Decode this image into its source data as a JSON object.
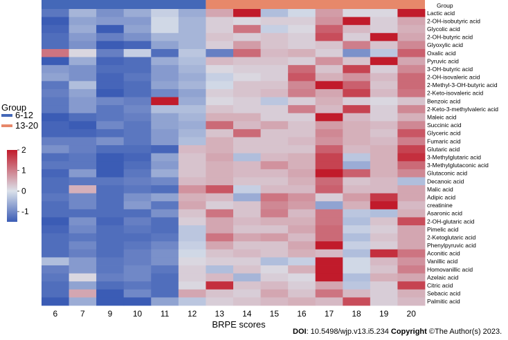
{
  "chart_data": {
    "type": "heatmap",
    "title": "",
    "xlabel": "BRPE scores",
    "ylabel": "",
    "x_categories": [
      "6",
      "7",
      "9",
      "10",
      "11",
      "12",
      "13",
      "14",
      "15",
      "16",
      "17",
      "18",
      "19",
      "20"
    ],
    "group_label": "Group",
    "groups": [
      {
        "name": "6-12",
        "color": "#4468b8",
        "columns": [
          "6",
          "7",
          "9",
          "10",
          "11",
          "12"
        ]
      },
      {
        "name": "13-20",
        "color": "#e7886a",
        "columns": [
          "13",
          "14",
          "15",
          "16",
          "17",
          "18",
          "19",
          "20"
        ]
      }
    ],
    "colorbar": {
      "min": -1.5,
      "max": 2,
      "ticks": [
        2,
        1,
        0,
        -1
      ],
      "tick_labels": [
        "2",
        "1",
        "0",
        "-1"
      ],
      "colors": [
        "#3b5cb5",
        "#dbe1ea",
        "#c11b2b"
      ]
    },
    "row_labels": [
      "Lactic acid",
      "2-OH-isobutyric acid",
      "Glycolic acid",
      "2-OH-butyric acid",
      "Glyoxylic acid",
      "Oxalic acid",
      "Pyruvic acid",
      "3-OH-butyric acid",
      "2-OH-isovaleric acid",
      "2-Methyl-3-OH-butyric acid",
      "2-Keto-isovaleric acid",
      "Benzoic acid",
      "2-Keto-3-methylvaleric acid",
      "Maleic acid",
      "Succinic acid",
      "Glyceric acid",
      "Fumaric acid",
      "Glutaric acid",
      "3-Methylglutaric acid",
      "3-Methylglutaconic acid",
      "Glutaconic acid",
      "Decanoic acid",
      "Malic acid",
      "Adipic acid",
      "creatinine",
      "Asaronic acid",
      "2-OH-glutaric acid",
      "Pimelic acid",
      "2-Ketoglutaric acid",
      "Phenylpyruvic acid",
      "Aconitic acid",
      "Vanillic acid",
      "Homovanillic acid",
      "Azelaic acid",
      "Citric acid",
      "Sebacic acid",
      "Palmitic acid"
    ],
    "values": [
      [
        -1.2,
        -0.5,
        -0.9,
        -0.6,
        -0.2,
        -0.6,
        0.6,
        2,
        -0.4,
        -0.1,
        0.7,
        0.1,
        0.1,
        2
      ],
      [
        -1.6,
        -0.7,
        -0.8,
        -0.8,
        -0.1,
        -0.5,
        0.2,
        0.1,
        0.2,
        0.2,
        0.8,
        2,
        0.2,
        0.6
      ],
      [
        -1.4,
        -0.6,
        -1.5,
        -0.7,
        -0.1,
        -0.5,
        0.2,
        1.1,
        -0.2,
        0.1,
        1.3,
        0.4,
        0.2,
        0.5
      ],
      [
        -1.3,
        -0.8,
        -1.1,
        -0.9,
        -0.5,
        -0.5,
        0.3,
        0.2,
        0.3,
        0.2,
        1.5,
        0.2,
        2,
        0.6
      ],
      [
        -1.3,
        -0.9,
        -1.5,
        -1.4,
        -0.7,
        -0.5,
        0.2,
        0.7,
        0.3,
        0.2,
        0.3,
        1,
        0.3,
        0.9
      ],
      [
        1.1,
        0.1,
        -1.1,
        -0.2,
        -1.3,
        -0.3,
        -1.1,
        1.2,
        0.4,
        0.5,
        0.2,
        -0.9,
        -0.3,
        1.3
      ],
      [
        -1.6,
        -0.6,
        -1.4,
        -1.3,
        -0.6,
        -0.4,
        0.4,
        0.3,
        0.3,
        0.2,
        0.8,
        0.3,
        2,
        0.6
      ],
      [
        -0.8,
        -0.9,
        -1.3,
        -1.3,
        -0.8,
        -0.5,
        0.1,
        0.2,
        0.2,
        1.2,
        0.3,
        1.6,
        0.2,
        0.9
      ],
      [
        -0.7,
        -0.9,
        -1.4,
        -1.2,
        -0.8,
        -0.6,
        -0.2,
        0.1,
        0.2,
        1.4,
        0.5,
        0.8,
        0.4,
        1.2
      ],
      [
        -1.2,
        -0.4,
        -1.4,
        -1.3,
        -0.7,
        -0.5,
        -0.1,
        0.3,
        0.3,
        0.9,
        2,
        1.3,
        0.3,
        1.2
      ],
      [
        -1.1,
        -0.7,
        -1.5,
        -1.3,
        -1,
        -0.7,
        0.2,
        0.3,
        0.4,
        1,
        0.6,
        1.6,
        0.4,
        1.1
      ],
      [
        -1.2,
        -0.8,
        -1,
        -1.1,
        2,
        -0.6,
        0.1,
        0.2,
        -0.3,
        0.2,
        0.5,
        0.2,
        0.1,
        0.3
      ],
      [
        -1.2,
        -0.8,
        -1.2,
        -1,
        -0.4,
        -0.4,
        0.3,
        0.2,
        0.2,
        1,
        0.4,
        1.6,
        0.2,
        0.9
      ],
      [
        -1.5,
        -1.3,
        -1.2,
        -1.1,
        -0.7,
        -0.5,
        0.5,
        0.5,
        0.2,
        0.2,
        2,
        0.4,
        0.2,
        0.5
      ],
      [
        -1.4,
        -1.5,
        -1,
        -1.2,
        -0.7,
        -0.6,
        1.2,
        0.4,
        0.6,
        0.3,
        0.7,
        0.5,
        0.4,
        0.9
      ],
      [
        -1.4,
        -1.4,
        -1.3,
        -1.2,
        -0.8,
        -0.5,
        0.3,
        1.2,
        0.3,
        0.3,
        0.9,
        0.5,
        0.3,
        1.4
      ],
      [
        -1.1,
        -1.1,
        -0.9,
        -1.2,
        -0.8,
        -0.4,
        0.5,
        0.3,
        0.3,
        0.4,
        0.8,
        0.5,
        0.4,
        1
      ],
      [
        -0.9,
        -1.1,
        -1.3,
        -1.3,
        -1.4,
        0.4,
        0.5,
        0.3,
        0.3,
        0.3,
        1.3,
        0.4,
        0.5,
        1.6
      ],
      [
        -1.3,
        -1.2,
        -1.5,
        -1.4,
        -0.7,
        0.3,
        0.6,
        -0.4,
        0.4,
        0.5,
        1.6,
        -0.3,
        0.5,
        1.8
      ],
      [
        -1.2,
        -1.2,
        -1.5,
        -1.3,
        -0.8,
        0.3,
        0.5,
        0.4,
        0.8,
        0.5,
        1.6,
        -0.6,
        0.5,
        1.2
      ],
      [
        -1.4,
        -0.8,
        -1.5,
        -1.2,
        -0.6,
        0.3,
        0.5,
        0.4,
        0.4,
        0.6,
        2,
        1.3,
        0.5,
        0.9
      ],
      [
        -1.3,
        -1.2,
        -1.2,
        -1.1,
        -1,
        0.4,
        0.5,
        0.3,
        0.3,
        0.5,
        1.2,
        0.3,
        0.4,
        -0.4
      ],
      [
        -1.3,
        0.5,
        -1.3,
        -1.2,
        -1.3,
        0.8,
        1.4,
        -0.2,
        0.4,
        0.4,
        1.3,
        0.4,
        0.4,
        0.6
      ],
      [
        -1.2,
        -1,
        -1.3,
        -0.9,
        -0.7,
        0.5,
        0.4,
        -0.6,
        1.1,
        0.8,
        0.2,
        0.7,
        1.7,
        0.6
      ],
      [
        -1.3,
        -1,
        -1.3,
        -0.8,
        -1.2,
        0.6,
        0.2,
        0.3,
        0.9,
        0.7,
        -0.7,
        0.5,
        2,
        0.4
      ],
      [
        -1.3,
        -1.3,
        -1.3,
        -1.3,
        -0.9,
        0.3,
        1.1,
        0.3,
        1,
        0.4,
        1.1,
        -0.3,
        -0.4,
        0.5
      ],
      [
        -1.5,
        -0.9,
        -1.4,
        -1.1,
        -1.3,
        0.2,
        0.6,
        0.4,
        0.5,
        0.5,
        1.1,
        -0.4,
        0.3,
        1.5
      ],
      [
        -1.4,
        -1,
        -1.3,
        -1.2,
        -1.3,
        -0.3,
        0.6,
        0.3,
        0.3,
        0.6,
        1.2,
        -0.2,
        0.2,
        0.6
      ],
      [
        -1.3,
        -1.2,
        -1.3,
        -1.3,
        -1.2,
        -0.3,
        1.1,
        0.6,
        0.7,
        0.4,
        1.2,
        -0.4,
        0.3,
        0.6
      ],
      [
        -1.3,
        -1,
        -1.3,
        -1.2,
        -1,
        -0.2,
        0.6,
        0.3,
        0.3,
        0.6,
        2,
        -0.2,
        0.2,
        0.6
      ],
      [
        -1.3,
        -1.1,
        -1.3,
        -1.1,
        -0.9,
        -0.1,
        0.3,
        0.4,
        0.3,
        0.5,
        0.4,
        -0.4,
        1.8,
        1.1
      ],
      [
        -0.4,
        -0.8,
        -1.2,
        -1.1,
        -0.9,
        0.1,
        0.2,
        0.2,
        -0.4,
        -0.2,
        2,
        -0.1,
        0.4,
        0.8
      ],
      [
        -1.1,
        -0.8,
        -1.2,
        -1,
        -1.2,
        0.2,
        -0.4,
        0.3,
        0.1,
        0.5,
        2,
        -0.1,
        0.3,
        1
      ],
      [
        -1.2,
        0.1,
        -1.1,
        -1,
        -1.3,
        0.2,
        0.4,
        -0.5,
        0.2,
        0.1,
        2,
        -0.4,
        0.5,
        0.6
      ],
      [
        -1.3,
        -0.7,
        -1.3,
        -1.2,
        -1.3,
        0.1,
        1.8,
        0.3,
        0.4,
        0.2,
        0.6,
        -0.3,
        0.2,
        1.6
      ],
      [
        -1.3,
        0.6,
        -1.5,
        -1,
        -1.3,
        0.6,
        0.3,
        0.2,
        0.6,
        0.3,
        1.1,
        0.4,
        0.2,
        0.5
      ],
      [
        -1.5,
        -0.6,
        -1.5,
        -1.5,
        -0.7,
        -0.3,
        0.2,
        0.3,
        0.4,
        0.5,
        0.4,
        1.5,
        0.2,
        0.4
      ]
    ]
  },
  "footer": {
    "doi_label": "DOI",
    "doi_text": ": 10.5498/wjp.v13.i5.234 ",
    "copyright_label": "Copyright",
    "copyright_text": " ©The Author(s) 2023."
  }
}
